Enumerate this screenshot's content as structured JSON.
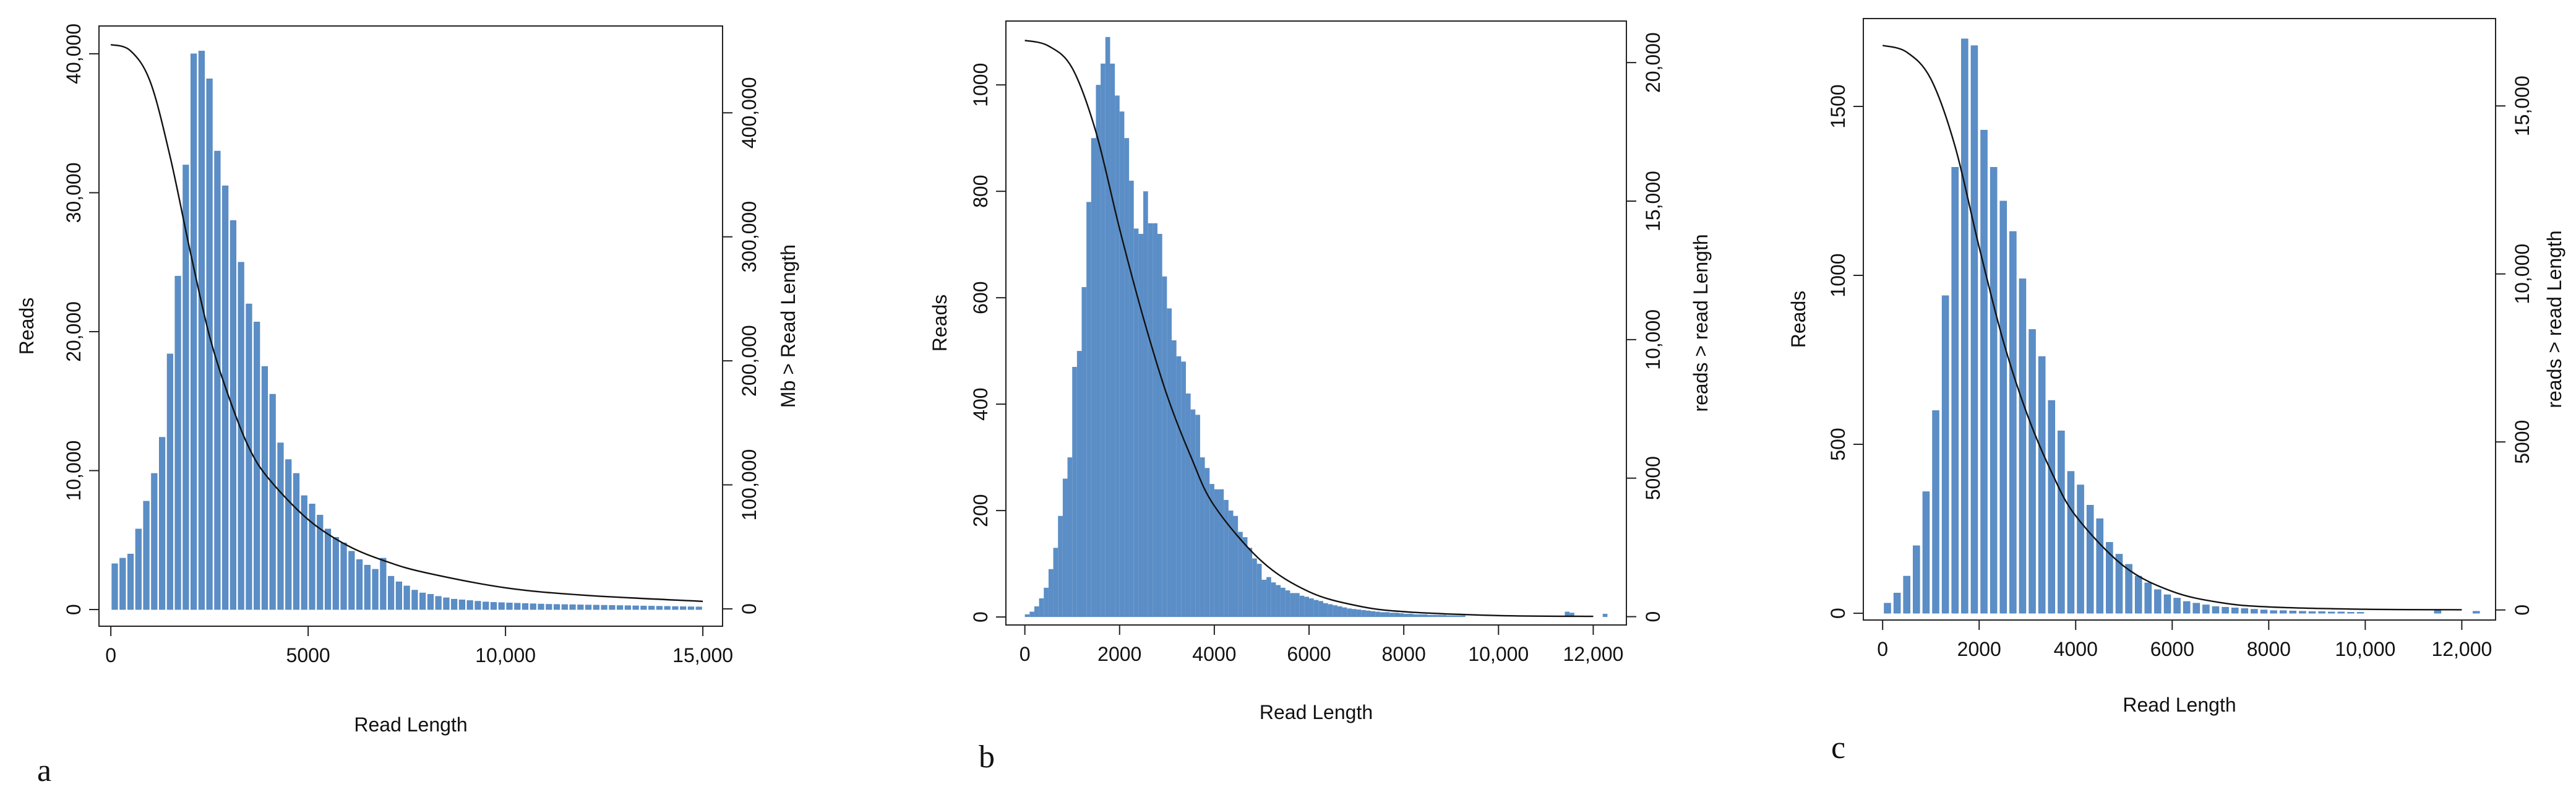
{
  "colors": {
    "bar": "#5b8ec6",
    "bar_edge": "#4c7fb8",
    "curve": "#111111",
    "axis": "#222222"
  },
  "chart_data": [
    {
      "type": "bar",
      "panel_label": "a",
      "xlabel": "Read Length",
      "ylabel": "Reads",
      "y2label": "Mb > Read Length",
      "xlim": [
        -300,
        15500
      ],
      "ylim": [
        -1200,
        42000
      ],
      "y2lim": [
        -14000,
        470000
      ],
      "x_ticks": [
        0,
        5000,
        10000,
        15000
      ],
      "x_tick_labels": [
        "0",
        "5000",
        "10,000",
        "15,000"
      ],
      "y_ticks": [
        0,
        10000,
        20000,
        30000,
        40000
      ],
      "y_tick_labels": [
        "0",
        "10,000",
        "20,000",
        "30,000",
        "40,000"
      ],
      "y2_ticks": [
        0,
        100000,
        200000,
        300000,
        400000
      ],
      "y2_tick_labels": [
        "0",
        "100,000",
        "200,000",
        "300,000",
        "400,000"
      ],
      "bin_width": 200,
      "bar_gap": 0.25,
      "bars": {
        "x_start": [
          0,
          200,
          400,
          600,
          800,
          1000,
          1200,
          1400,
          1600,
          1800,
          2000,
          2200,
          2400,
          2600,
          2800,
          3000,
          3200,
          3400,
          3600,
          3800,
          4000,
          4200,
          4400,
          4600,
          4800,
          5000,
          5200,
          5400,
          5600,
          5800,
          6000,
          6200,
          6400,
          6600,
          6800,
          7000,
          7200,
          7400,
          7600,
          7800,
          8000,
          8200,
          8400,
          8600,
          8800,
          9000,
          9200,
          9400,
          9600,
          9800,
          10000,
          10200,
          10400,
          10600,
          10800,
          11000,
          11200,
          11400,
          11600,
          11800,
          12000,
          12200,
          12400,
          12600,
          12800,
          13000,
          13200,
          13400,
          13600,
          13800,
          14000,
          14200,
          14400,
          14600,
          14800
        ],
        "values": [
          3300,
          3700,
          4000,
          5800,
          7800,
          9800,
          12400,
          18400,
          24000,
          32000,
          40000,
          40200,
          38200,
          33000,
          30500,
          28000,
          25000,
          22000,
          20700,
          17500,
          15500,
          12000,
          10800,
          9800,
          8200,
          7600,
          6800,
          5800,
          5200,
          4800,
          4200,
          3600,
          3200,
          2900,
          3700,
          2400,
          2000,
          1700,
          1400,
          1200,
          1100,
          950,
          850,
          750,
          700,
          650,
          600,
          550,
          520,
          500,
          480,
          460,
          440,
          420,
          400,
          380,
          370,
          360,
          350,
          340,
          330,
          320,
          310,
          300,
          290,
          280,
          270,
          260,
          250,
          240,
          230,
          220,
          210,
          200,
          190
        ]
      },
      "cumulative": {
        "x": [
          0,
          500,
          1000,
          1500,
          2000,
          2500,
          3000,
          3500,
          4000,
          5000,
          6000,
          7000,
          8000,
          10000,
          12000,
          15000
        ],
        "y": [
          455000,
          450000,
          425000,
          365000,
          290000,
          220000,
          170000,
          130000,
          105000,
          72000,
          51000,
          38000,
          29000,
          17000,
          11000,
          6000
        ]
      }
    },
    {
      "type": "bar",
      "panel_label": "b",
      "xlabel": "Read Length",
      "ylabel": "Reads",
      "y2label": "reads > read Length",
      "xlim": [
        -400,
        12700
      ],
      "ylim": [
        -15,
        1120
      ],
      "y2lim": [
        -300,
        21500
      ],
      "x_ticks": [
        0,
        2000,
        4000,
        6000,
        8000,
        10000,
        12000
      ],
      "x_tick_labels": [
        "0",
        "2000",
        "4000",
        "6000",
        "8000",
        "10,000",
        "12,000"
      ],
      "y_ticks": [
        0,
        200,
        400,
        600,
        800,
        1000
      ],
      "y_tick_labels": [
        "0",
        "200",
        "400",
        "600",
        "800",
        "1000"
      ],
      "y2_ticks": [
        0,
        5000,
        10000,
        15000,
        20000
      ],
      "y2_tick_labels": [
        "0",
        "5000",
        "10,000",
        "15,000",
        "20,000"
      ],
      "bin_width": 100,
      "bar_gap": 0,
      "bars": {
        "x_start": [
          0,
          100,
          200,
          300,
          400,
          500,
          600,
          700,
          800,
          900,
          1000,
          1100,
          1200,
          1300,
          1400,
          1500,
          1600,
          1700,
          1800,
          1900,
          2000,
          2100,
          2200,
          2300,
          2400,
          2500,
          2600,
          2700,
          2800,
          2900,
          3000,
          3100,
          3200,
          3300,
          3400,
          3500,
          3600,
          3700,
          3800,
          3900,
          4000,
          4100,
          4200,
          4300,
          4400,
          4500,
          4600,
          4700,
          4800,
          4900,
          5000,
          5100,
          5200,
          5300,
          5400,
          5500,
          5600,
          5700,
          5800,
          5900,
          6000,
          6100,
          6200,
          6300,
          6400,
          6500,
          6600,
          6700,
          6800,
          6900,
          7000,
          7100,
          7200,
          7300,
          7400,
          7500,
          7600,
          7700,
          7800,
          7900,
          8000,
          8100,
          8200,
          8300,
          8400,
          8500,
          8600,
          8700,
          8800,
          8900,
          9000,
          9100,
          9200,
          11400,
          11500,
          12200
        ],
        "values": [
          5,
          10,
          20,
          35,
          55,
          90,
          130,
          190,
          260,
          300,
          470,
          500,
          620,
          780,
          900,
          1000,
          1040,
          1090,
          1040,
          980,
          950,
          900,
          820,
          730,
          720,
          800,
          740,
          740,
          720,
          640,
          580,
          520,
          490,
          480,
          420,
          390,
          380,
          300,
          280,
          250,
          240,
          240,
          220,
          200,
          190,
          160,
          150,
          130,
          110,
          100,
          70,
          75,
          65,
          60,
          55,
          50,
          45,
          45,
          40,
          38,
          35,
          32,
          30,
          26,
          24,
          22,
          20,
          18,
          16,
          15,
          14,
          13,
          12,
          11,
          10,
          9,
          9,
          8,
          8,
          7,
          6,
          6,
          5,
          5,
          5,
          4,
          4,
          4,
          4,
          3,
          3,
          3,
          3,
          10,
          8,
          6
        ]
      },
      "cumulative": {
        "x": [
          0,
          500,
          1000,
          1500,
          2000,
          2500,
          3000,
          3500,
          4000,
          5000,
          6000,
          7000,
          8000,
          10000,
          12000
        ],
        "y": [
          20800,
          20600,
          19800,
          17500,
          14000,
          10800,
          8000,
          5800,
          4000,
          2000,
          900,
          400,
          180,
          40,
          10
        ]
      }
    },
    {
      "type": "bar",
      "panel_label": "c",
      "xlabel": "Read Length",
      "ylabel": "Reads",
      "y2label": "reads > read Length",
      "xlim": [
        -400,
        12700
      ],
      "ylim": [
        -20,
        1760
      ],
      "y2lim": [
        -300,
        17600
      ],
      "x_ticks": [
        0,
        2000,
        4000,
        6000,
        8000,
        10000,
        12000
      ],
      "x_tick_labels": [
        "0",
        "2000",
        "4000",
        "6000",
        "8000",
        "10,000",
        "12,000"
      ],
      "y_ticks": [
        0,
        500,
        1000,
        1500
      ],
      "y_tick_labels": [
        "0",
        "500",
        "1000",
        "1500"
      ],
      "y2_ticks": [
        0,
        5000,
        10000,
        15000
      ],
      "y2_tick_labels": [
        "0",
        "5000",
        "10,000",
        "15,000"
      ],
      "bin_width": 200,
      "bar_gap": 0.3,
      "bars": {
        "x_start": [
          0,
          200,
          400,
          600,
          800,
          1000,
          1200,
          1400,
          1600,
          1800,
          2000,
          2200,
          2400,
          2600,
          2800,
          3000,
          3200,
          3400,
          3600,
          3800,
          4000,
          4200,
          4400,
          4600,
          4800,
          5000,
          5200,
          5400,
          5600,
          5800,
          6000,
          6200,
          6400,
          6600,
          6800,
          7000,
          7200,
          7400,
          7600,
          7800,
          8000,
          8200,
          8400,
          8600,
          8800,
          9000,
          9200,
          9400,
          9600,
          9800,
          11400,
          12200
        ],
        "values": [
          30,
          60,
          110,
          200,
          360,
          600,
          940,
          1320,
          1700,
          1680,
          1430,
          1320,
          1220,
          1130,
          990,
          840,
          760,
          630,
          540,
          420,
          380,
          320,
          280,
          210,
          175,
          145,
          110,
          90,
          70,
          55,
          45,
          35,
          30,
          25,
          20,
          18,
          16,
          14,
          12,
          10,
          8,
          8,
          7,
          6,
          5,
          5,
          4,
          4,
          3,
          3,
          8,
          6
        ]
      },
      "cumulative": {
        "x": [
          0,
          500,
          1000,
          1500,
          2000,
          2500,
          3000,
          3500,
          4000,
          5000,
          6000,
          7000,
          8000,
          10000,
          12000
        ],
        "y": [
          16800,
          16600,
          15800,
          13800,
          10800,
          8000,
          5800,
          4100,
          2800,
          1300,
          550,
          220,
          90,
          20,
          5
        ]
      }
    }
  ]
}
